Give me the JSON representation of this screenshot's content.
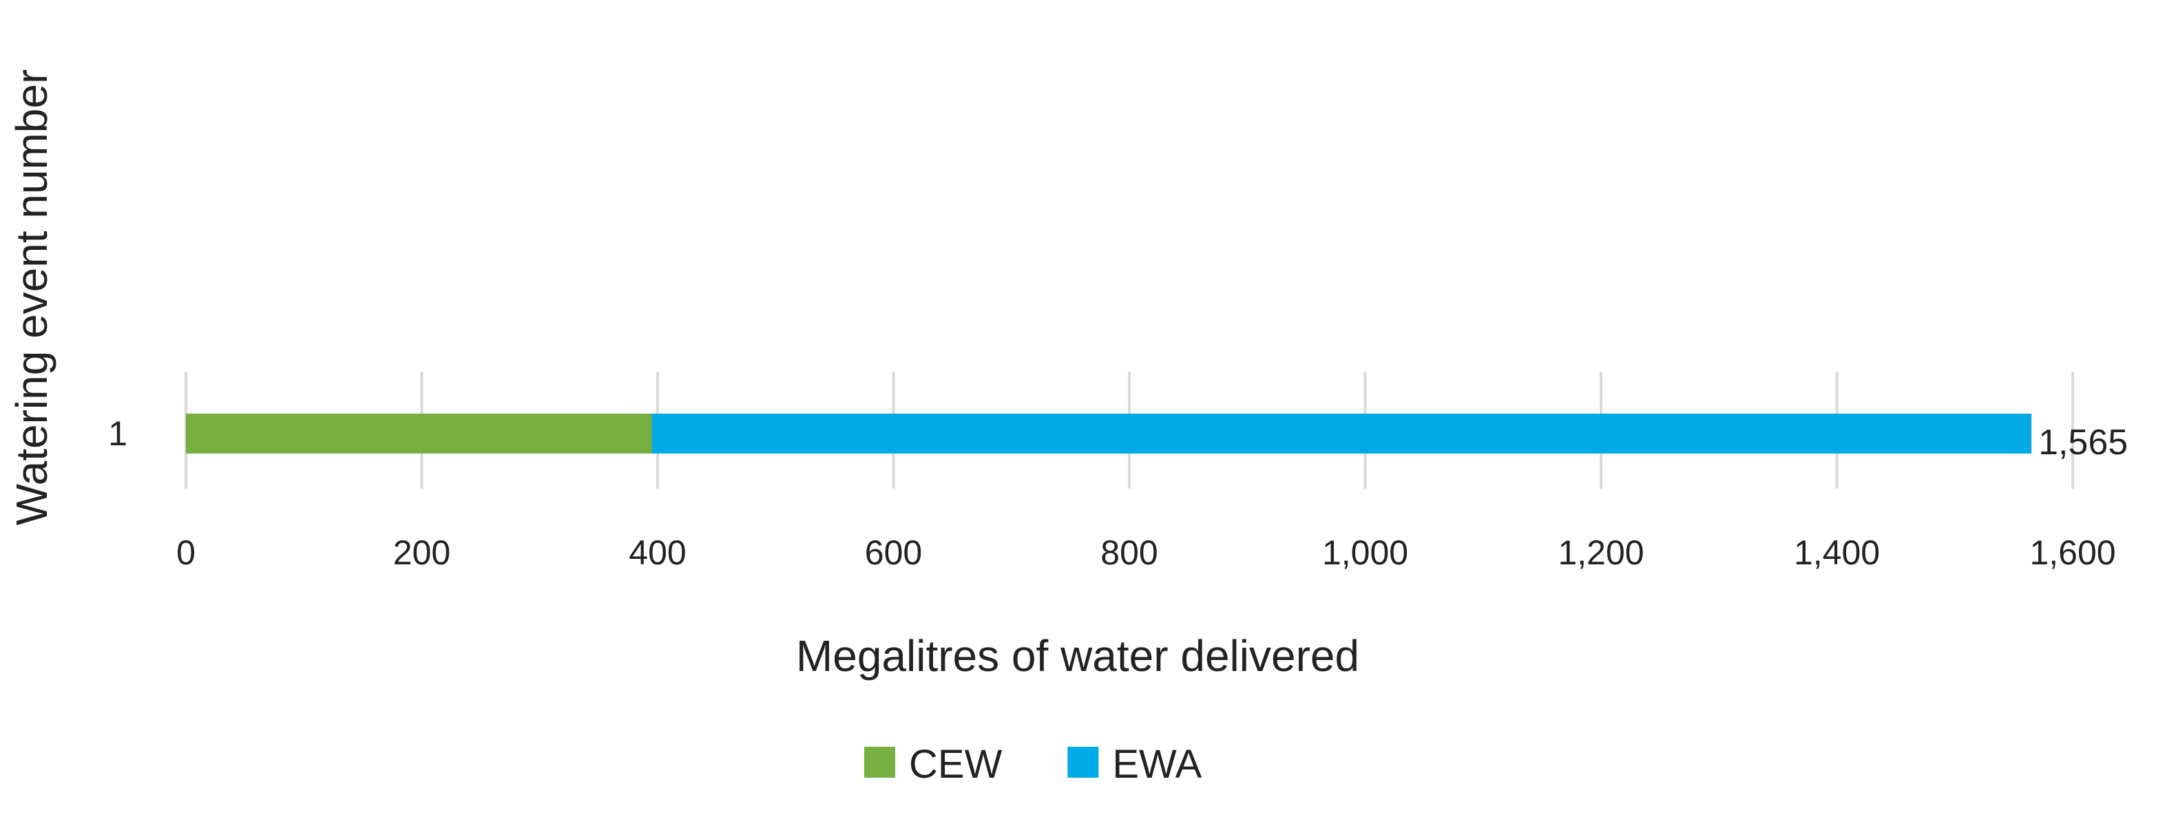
{
  "chart_data": {
    "type": "bar",
    "orientation": "horizontal",
    "stacked": true,
    "categories": [
      "1"
    ],
    "series": [
      {
        "name": "CEW",
        "values": [
          395
        ],
        "color": "#77b041"
      },
      {
        "name": "EWA",
        "values": [
          1170
        ],
        "color": "#00aae6"
      }
    ],
    "totals": [
      1565
    ],
    "total_labels": [
      "1,565"
    ],
    "xlabel": "Megalitres of water delivered",
    "ylabel": "Watering event number",
    "xlim": [
      0,
      1600
    ],
    "xticks": [
      0,
      200,
      400,
      600,
      800,
      1000,
      1200,
      1400,
      1600
    ],
    "xtick_labels": [
      "0",
      "200",
      "400",
      "600",
      "800",
      "1,000",
      "1,200",
      "1,400",
      "1,600"
    ],
    "grid": "vertical",
    "grid_color": "#d9d9d9",
    "legend": "bottom"
  }
}
